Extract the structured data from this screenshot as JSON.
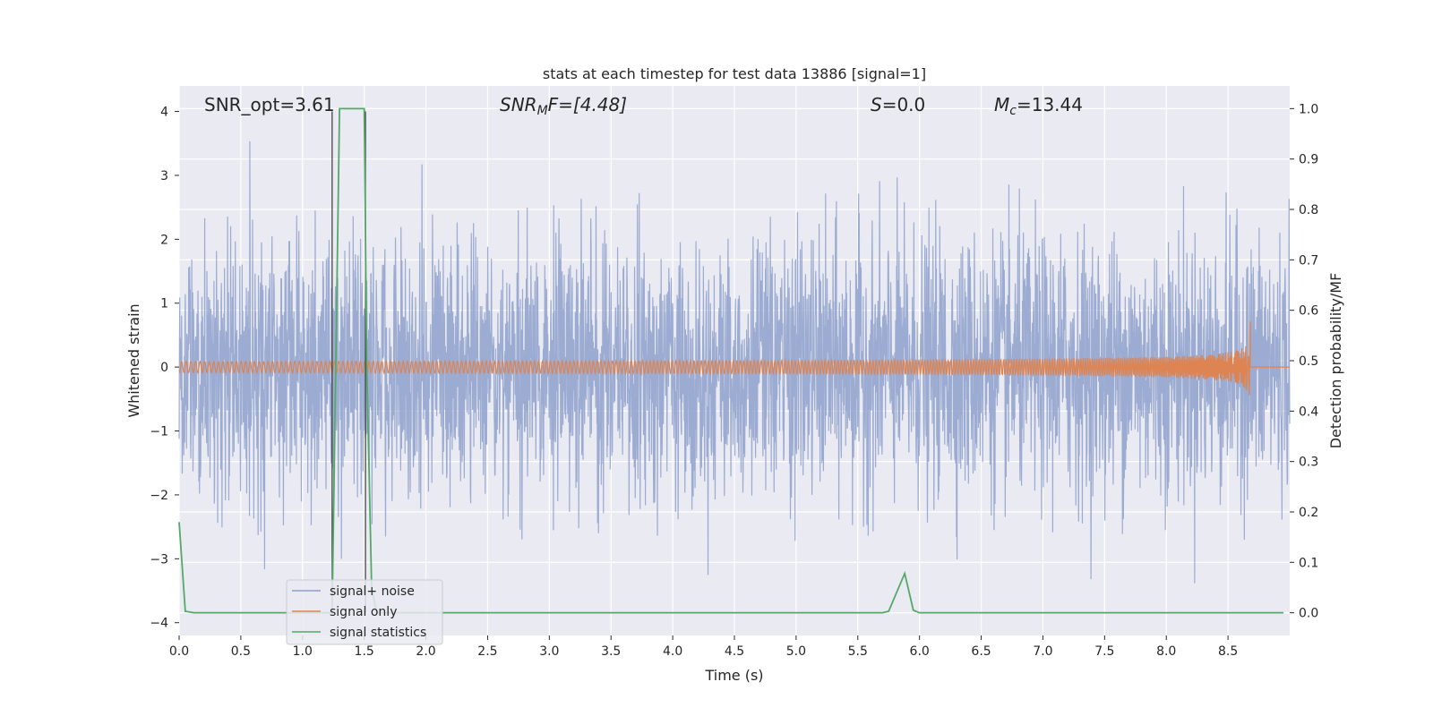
{
  "chart_data": {
    "type": "line",
    "title": "stats at each timestep for test data 13886 [signal=1]",
    "xlabel": "Time (s)",
    "ylabel": "Whitened strain",
    "y2label": "Detection probability/MF",
    "xlim": [
      0.0,
      9.0
    ],
    "ylim": [
      -4.2,
      4.4
    ],
    "y2lim": [
      -0.045,
      1.045
    ],
    "xticks": [
      "0.0",
      "0.5",
      "1.0",
      "1.5",
      "2.0",
      "2.5",
      "3.0",
      "3.5",
      "4.0",
      "4.5",
      "5.0",
      "5.5",
      "6.0",
      "6.5",
      "7.0",
      "7.5",
      "8.0",
      "8.5"
    ],
    "yticks": [
      "4",
      "3",
      "2",
      "1",
      "0",
      "−1",
      "−2",
      "−3",
      "−4"
    ],
    "y2ticks": [
      "1.0",
      "0.9",
      "0.8",
      "0.7",
      "0.6",
      "0.5",
      "0.4",
      "0.3",
      "0.2",
      "0.1",
      "0.0"
    ],
    "grid": true,
    "legend_position": "bottom-left",
    "annotations": {
      "snr_opt": "SNR_opt=3.61",
      "snr_mf_main": "SNR",
      "snr_mf_sub": "M",
      "snr_mf_tail": "F=[4.48]",
      "s_main": "S",
      "s_tail": "=0.0",
      "mc_main": "M",
      "mc_sub": "c",
      "mc_tail": "=13.44"
    },
    "vertical_lines": [
      1.24,
      1.51
    ],
    "series": [
      {
        "name": "signal+ noise",
        "color": "#8da0cb",
        "description_values": {
          "envelope_min": -3.8,
          "envelope_max": 4.0,
          "x_start": 0.0,
          "x_end": 9.0
        }
      },
      {
        "name": "signal only",
        "color": "#dd8452",
        "chirp": {
          "t_start": 0.0,
          "t_merger": 8.68,
          "peak_amplitude": 0.8
        }
      },
      {
        "name": "signal statistics",
        "color": "#55a868",
        "axis": "right",
        "x": [
          0.0,
          0.05,
          0.12,
          0.2,
          1.15,
          1.24,
          1.3,
          1.35,
          1.5,
          1.52,
          1.56,
          1.6,
          1.7,
          5.7,
          5.75,
          5.88,
          5.95,
          6.0,
          8.95
        ],
        "y": [
          0.18,
          0.003,
          0.0,
          0.0,
          0.0,
          0.0,
          1.0,
          1.0,
          1.0,
          0.5,
          0.05,
          0.0,
          0.0,
          0.0,
          0.003,
          0.078,
          0.005,
          0.0,
          0.0
        ]
      }
    ]
  }
}
